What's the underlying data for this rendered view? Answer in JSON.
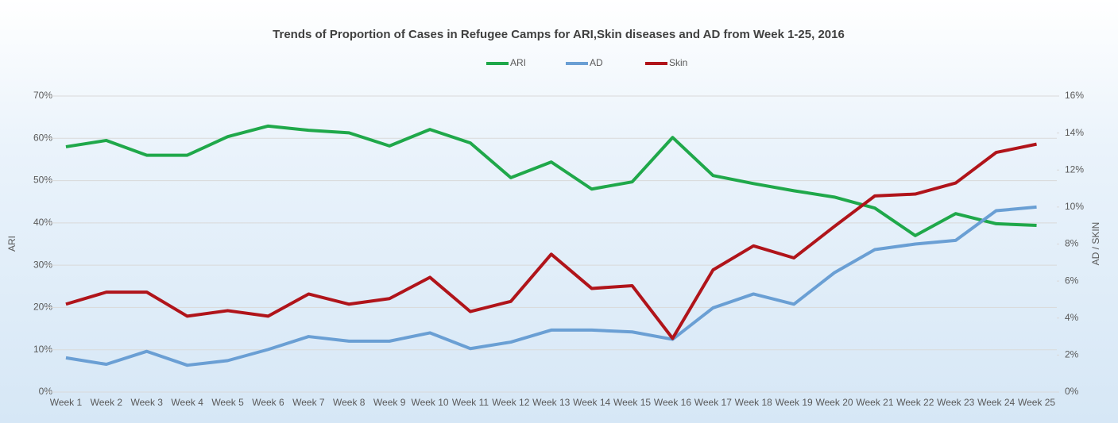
{
  "chart_data": {
    "type": "line",
    "title": "Trends of Proportion of Cases in Refugee Camps for ARI,Skin diseases and AD from Week 1-25, 2016",
    "y_label": "ARI",
    "y2_label": "AD / SKIN",
    "categories": [
      "Week 1",
      "Week 2",
      "Week 3",
      "Week 4",
      "Week 5",
      "Week 6",
      "Week 7",
      "Week 8",
      "Week 9",
      "Week 10",
      "Week 11",
      "Week 12",
      "Week 13",
      "Week 14",
      "Week 15",
      "Week 16",
      "Week 17",
      "Week 18",
      "Week 19",
      "Week 20",
      "Week 21",
      "Week 22",
      "Week 23",
      "Week 24",
      "Week 25"
    ],
    "series": [
      {
        "name": "ARI",
        "color": "#1fa84a",
        "axis": "y",
        "values": [
          58.0,
          59.5,
          56.0,
          56.0,
          60.4,
          62.9,
          61.9,
          61.3,
          58.2,
          62.1,
          58.9,
          50.7,
          54.4,
          48.0,
          49.7,
          60.2,
          51.2,
          49.3,
          47.6,
          46.1,
          43.5,
          37.0,
          42.2,
          39.8,
          39.4
        ]
      },
      {
        "name": "AD",
        "color": "#6a9fd4",
        "axis": "y2",
        "values": [
          1.85,
          1.5,
          2.2,
          1.45,
          1.7,
          2.3,
          3.0,
          2.75,
          2.75,
          3.2,
          2.35,
          2.7,
          3.35,
          3.35,
          3.25,
          2.85,
          4.55,
          5.3,
          4.75,
          6.45,
          7.7,
          8.0,
          8.2,
          9.8,
          10.0
        ]
      },
      {
        "name": "Skin",
        "color": "#b0141a",
        "axis": "y2",
        "values": [
          4.75,
          5.4,
          5.4,
          4.1,
          4.4,
          4.1,
          5.3,
          4.75,
          5.05,
          6.2,
          4.35,
          4.9,
          7.45,
          5.6,
          5.75,
          2.9,
          6.6,
          7.9,
          7.25,
          8.95,
          10.6,
          10.7,
          11.3,
          12.95,
          13.4
        ]
      }
    ],
    "ylim": [
      0,
      70
    ],
    "yticks": [
      {
        "value": 0,
        "label": "0%"
      },
      {
        "value": 10,
        "label": "10%"
      },
      {
        "value": 20,
        "label": "20%"
      },
      {
        "value": 30,
        "label": "30%"
      },
      {
        "value": 40,
        "label": "40%"
      },
      {
        "value": 50,
        "label": "50%"
      },
      {
        "value": 60,
        "label": "60%"
      },
      {
        "value": 70,
        "label": "70%"
      }
    ],
    "y2lim": [
      0,
      16
    ],
    "y2ticks": [
      {
        "value": 0,
        "label": "0%"
      },
      {
        "value": 2,
        "label": "2%"
      },
      {
        "value": 4,
        "label": "4%"
      },
      {
        "value": 6,
        "label": "6%"
      },
      {
        "value": 8,
        "label": "8%"
      },
      {
        "value": 10,
        "label": "10%"
      },
      {
        "value": 12,
        "label": "12%"
      },
      {
        "value": 14,
        "label": "14%"
      },
      {
        "value": 16,
        "label": "16%"
      }
    ],
    "grid": true,
    "legend": "top"
  }
}
